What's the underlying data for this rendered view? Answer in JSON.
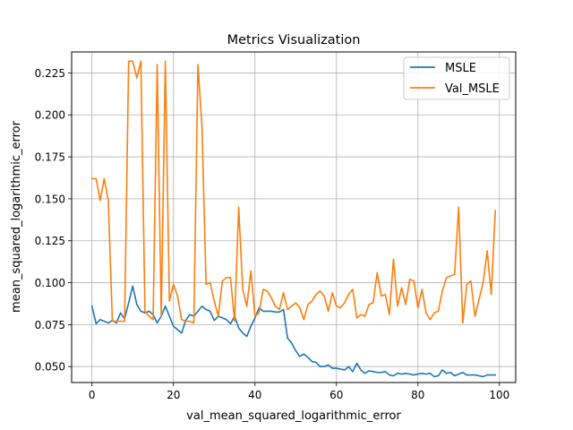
{
  "chart_data": {
    "type": "line",
    "title": "Metrics Visualization",
    "xlabel": "val_mean_squared_logarithmic_error",
    "ylabel": "mean_squared_logarithmic_error",
    "xlim": [
      -5.0,
      104.0
    ],
    "ylim": [
      0.0405,
      0.2375
    ],
    "xticks": [
      0,
      20,
      40,
      60,
      80,
      100
    ],
    "yticks": [
      0.05,
      0.075,
      0.1,
      0.125,
      0.15,
      0.175,
      0.2,
      0.225
    ],
    "xtick_labels": [
      "0",
      "20",
      "40",
      "60",
      "80",
      "100"
    ],
    "ytick_labels": [
      "0.050",
      "0.075",
      "0.100",
      "0.125",
      "0.150",
      "0.175",
      "0.200",
      "0.225"
    ],
    "grid": true,
    "legend_position": "upper right",
    "series": [
      {
        "name": "MSLE",
        "color": "#1f77b4",
        "x": [
          0,
          1,
          2,
          3,
          4,
          5,
          6,
          7,
          8,
          9,
          10,
          11,
          12,
          13,
          14,
          15,
          16,
          17,
          18,
          19,
          20,
          21,
          22,
          23,
          24,
          25,
          26,
          27,
          28,
          29,
          30,
          31,
          32,
          33,
          34,
          35,
          36,
          37,
          38,
          39,
          40,
          41,
          42,
          43,
          44,
          45,
          46,
          47,
          48,
          49,
          50,
          51,
          52,
          53,
          54,
          55,
          56,
          57,
          58,
          59,
          60,
          61,
          62,
          63,
          64,
          65,
          66,
          67,
          68,
          69,
          70,
          71,
          72,
          73,
          74,
          75,
          76,
          77,
          78,
          79,
          80,
          81,
          82,
          83,
          84,
          85,
          86,
          87,
          88,
          89,
          90,
          91,
          92,
          93,
          94,
          95,
          96,
          97,
          98,
          99
        ],
        "values": [
          0.086,
          0.0755,
          0.078,
          0.077,
          0.076,
          0.0775,
          0.076,
          0.082,
          0.0785,
          0.088,
          0.098,
          0.087,
          0.083,
          0.082,
          0.083,
          0.081,
          0.076,
          0.08,
          0.086,
          0.08,
          0.074,
          0.072,
          0.07,
          0.0775,
          0.081,
          0.08,
          0.083,
          0.086,
          0.084,
          0.083,
          0.0775,
          0.08,
          0.079,
          0.078,
          0.0755,
          0.08,
          0.073,
          0.07,
          0.068,
          0.074,
          0.079,
          0.085,
          0.083,
          0.083,
          0.083,
          0.0825,
          0.0825,
          0.084,
          0.067,
          0.064,
          0.0595,
          0.056,
          0.0575,
          0.0555,
          0.053,
          0.0525,
          0.05,
          0.05,
          0.051,
          0.049,
          0.049,
          0.0485,
          0.048,
          0.05,
          0.047,
          0.052,
          0.048,
          0.046,
          0.0475,
          0.047,
          0.0465,
          0.0465,
          0.047,
          0.045,
          0.0445,
          0.046,
          0.0455,
          0.046,
          0.0455,
          0.045,
          0.0455,
          0.046,
          0.0455,
          0.046,
          0.044,
          0.0445,
          0.048,
          0.046,
          0.0465,
          0.0445,
          0.0455,
          0.0465,
          0.045,
          0.045,
          0.045,
          0.0445,
          0.044,
          0.045,
          0.045,
          0.045
        ]
      },
      {
        "name": "Val_MSLE",
        "color": "#ff7f0e",
        "x": [
          0,
          1,
          2,
          3,
          4,
          5,
          6,
          7,
          8,
          9,
          10,
          11,
          12,
          13,
          14,
          15,
          16,
          17,
          18,
          19,
          20,
          21,
          22,
          23,
          24,
          25,
          26,
          27,
          28,
          29,
          30,
          31,
          32,
          33,
          34,
          35,
          36,
          37,
          38,
          39,
          40,
          41,
          42,
          43,
          44,
          45,
          46,
          47,
          48,
          49,
          50,
          51,
          52,
          53,
          54,
          55,
          56,
          57,
          58,
          59,
          60,
          61,
          62,
          63,
          64,
          65,
          66,
          67,
          68,
          69,
          70,
          71,
          72,
          73,
          74,
          75,
          76,
          77,
          78,
          79,
          80,
          81,
          82,
          83,
          84,
          85,
          86,
          87,
          88,
          89,
          90,
          91,
          92,
          93,
          94,
          95,
          96,
          97,
          98,
          99
        ],
        "values": [
          0.162,
          0.162,
          0.149,
          0.162,
          0.149,
          0.077,
          0.077,
          0.077,
          0.077,
          0.232,
          0.232,
          0.222,
          0.232,
          0.083,
          0.08,
          0.078,
          0.23,
          0.08,
          0.232,
          0.089,
          0.099,
          0.092,
          0.078,
          0.077,
          0.077,
          0.076,
          0.23,
          0.193,
          0.099,
          0.1,
          0.089,
          0.08,
          0.101,
          0.103,
          0.103,
          0.077,
          0.145,
          0.096,
          0.086,
          0.107,
          0.08,
          0.082,
          0.096,
          0.095,
          0.091,
          0.086,
          0.084,
          0.094,
          0.084,
          0.086,
          0.088,
          0.085,
          0.078,
          0.087,
          0.089,
          0.093,
          0.095,
          0.092,
          0.083,
          0.094,
          0.086,
          0.085,
          0.088,
          0.093,
          0.096,
          0.079,
          0.081,
          0.08,
          0.087,
          0.088,
          0.106,
          0.092,
          0.093,
          0.081,
          0.114,
          0.086,
          0.097,
          0.087,
          0.102,
          0.101,
          0.085,
          0.096,
          0.082,
          0.078,
          0.082,
          0.083,
          0.095,
          0.103,
          0.104,
          0.105,
          0.145,
          0.076,
          0.099,
          0.101,
          0.08,
          0.09,
          0.1,
          0.119,
          0.093,
          0.143
        ]
      }
    ]
  }
}
